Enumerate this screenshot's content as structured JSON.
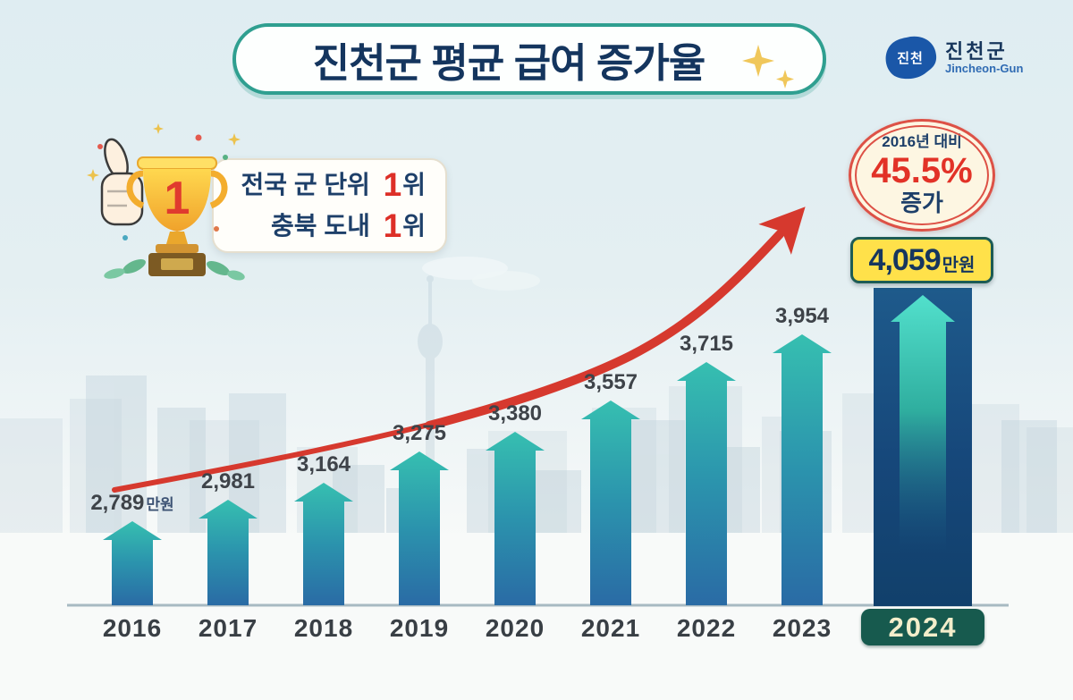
{
  "page": {
    "title_text": "진천군 평균 급여 증가율"
  },
  "logo": {
    "korean": "진천군",
    "english": "Jincheon-Gun",
    "mark_text": "진천"
  },
  "award": {
    "trophy_number": "1",
    "lines": [
      {
        "prefix": "전국 군 단위 ",
        "rank": "1",
        "suffix": "위"
      },
      {
        "prefix": "충북 도내 ",
        "rank": "1",
        "suffix": "위"
      }
    ]
  },
  "badge": {
    "top": "2016년 대비",
    "percent": "45.5%",
    "bottom": "증가"
  },
  "highlight": {
    "value": "4,059",
    "unit": "만원"
  },
  "chart_data": {
    "type": "bar",
    "title": "진천군 평균 급여 증가율",
    "unit": "만원",
    "categories": [
      "2016",
      "2017",
      "2018",
      "2019",
      "2020",
      "2021",
      "2022",
      "2023",
      "2024"
    ],
    "values": [
      2789,
      2981,
      3164,
      3275,
      3380,
      3557,
      3715,
      3954,
      4059
    ],
    "value_labels": [
      "2,789만원",
      "2,981",
      "3,164",
      "3,275",
      "3,380",
      "3,557",
      "3,715",
      "3,954",
      "4,059만원"
    ],
    "highlight_year": "2024",
    "annotation": "2016년 대비 45.5% 증가",
    "trend_arrow": true,
    "legend": false,
    "xlabel": "",
    "ylabel": ""
  },
  "colors": {
    "accent_red": "#d6392e",
    "bar_gradient_top": "#36bfb0",
    "bar_gradient_bottom": "#2a6ba5",
    "column_2024": "#16477a",
    "navy_text": "#17365c",
    "gray_label": "#3e4349",
    "yellow_box": "#ffe14a",
    "green_box": "#175a4e",
    "badge_background": "#fdf6e2",
    "badge_border": "#dd5146",
    "title_border": "#2f9f90",
    "trophy_gold": "#f5c33b",
    "logo_blue": "#1a57a8"
  }
}
